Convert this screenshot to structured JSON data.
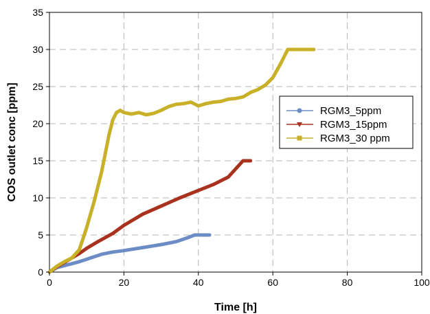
{
  "chart_data": {
    "type": "line",
    "xlabel": "Time [h]",
    "ylabel": "COS outlet conc [ppm]",
    "xlim": [
      0,
      100
    ],
    "ylim": [
      0,
      35
    ],
    "xticks": [
      0,
      20,
      40,
      60,
      80,
      100
    ],
    "yticks": [
      0,
      5,
      10,
      15,
      20,
      25,
      30,
      35
    ],
    "grid": true,
    "legend_position": "right",
    "series": [
      {
        "name": "RGM3_5ppm",
        "color": "#6b8cc4",
        "marker": "circle",
        "x": [
          0,
          2,
          5,
          8,
          11,
          14,
          17,
          20,
          25,
          30,
          34,
          37,
          39,
          41,
          43
        ],
        "y": [
          0,
          0.6,
          1.0,
          1.4,
          1.9,
          2.4,
          2.7,
          2.9,
          3.3,
          3.7,
          4.1,
          4.6,
          5.0,
          5.0,
          5.0
        ]
      },
      {
        "name": "RGM3_15ppm",
        "color": "#a8321e",
        "marker": "triangle-down",
        "x": [
          0,
          2,
          4,
          6,
          8,
          10,
          13,
          17,
          20,
          25,
          30,
          35,
          40,
          44,
          48,
          52,
          54
        ],
        "y": [
          0,
          0.7,
          1.3,
          1.9,
          2.5,
          3.2,
          4.1,
          5.2,
          6.3,
          7.8,
          8.9,
          10.0,
          11.0,
          11.8,
          12.8,
          15.0,
          15.0
        ]
      },
      {
        "name": "RGM3_30 ppm",
        "color": "#c8b028",
        "marker": "square",
        "x": [
          0,
          2,
          4,
          6,
          8,
          10,
          12,
          14,
          15,
          16,
          17,
          18,
          19,
          20,
          22,
          24,
          26,
          28,
          30,
          32,
          34,
          36,
          38,
          40,
          42,
          44,
          46,
          48,
          50,
          52,
          54,
          56,
          58,
          60,
          62,
          64,
          66,
          68,
          71
        ],
        "y": [
          0,
          0.8,
          1.4,
          1.9,
          3.0,
          6.0,
          9.5,
          13.5,
          16.0,
          18.5,
          20.5,
          21.5,
          21.8,
          21.5,
          21.3,
          21.5,
          21.2,
          21.4,
          21.8,
          22.3,
          22.6,
          22.7,
          22.9,
          22.4,
          22.7,
          22.9,
          23.0,
          23.3,
          23.4,
          23.6,
          24.2,
          24.6,
          25.2,
          26.2,
          28.0,
          30.0,
          30.0,
          30.0,
          30.0
        ]
      }
    ]
  }
}
